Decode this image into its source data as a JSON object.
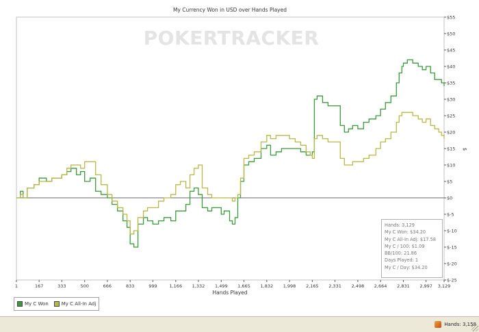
{
  "chart_data": {
    "type": "line",
    "title": "My Currency Won in USD over Hands Played",
    "xlabel": "Hands Played",
    "ylabel": "$",
    "xlim": [
      1,
      3129
    ],
    "ylim": [
      -25,
      55
    ],
    "x_ticks": [
      1,
      167,
      333,
      500,
      666,
      833,
      999,
      1166,
      1332,
      1499,
      1665,
      1832,
      1998,
      2165,
      2331,
      2498,
      2664,
      2831,
      2997,
      3129
    ],
    "x_tick_labels": [
      "1",
      "167",
      "333",
      "500",
      "666",
      "833",
      "999",
      "1,166",
      "1,332",
      "1,499",
      "1,665",
      "1,832",
      "1,998",
      "2,165",
      "2,331",
      "2,498",
      "2,664",
      "2,831",
      "2,997",
      "3,129"
    ],
    "y_ticks": [
      -25,
      -20,
      -15,
      -10,
      -5,
      0,
      5,
      10,
      15,
      20,
      25,
      30,
      35,
      40,
      45,
      50,
      55
    ],
    "y_tick_labels": [
      "$-25",
      "$-20",
      "$-15",
      "$-10",
      "$-5",
      "$0",
      "$5",
      "$10",
      "$15",
      "$20",
      "$25",
      "$30",
      "$35",
      "$40",
      "$45",
      "$50",
      "$55"
    ],
    "grid": false,
    "legend_position": "bottom-left",
    "series": [
      {
        "name": "My C Won",
        "color": "#3a9a3a",
        "x": [
          1,
          30,
          50,
          80,
          130,
          167,
          220,
          260,
          333,
          370,
          400,
          440,
          470,
          500,
          540,
          580,
          620,
          666,
          700,
          740,
          780,
          810,
          833,
          860,
          890,
          930,
          960,
          999,
          1040,
          1080,
          1130,
          1166,
          1200,
          1240,
          1270,
          1300,
          1332,
          1360,
          1400,
          1430,
          1460,
          1499,
          1520,
          1560,
          1580,
          1600,
          1620,
          1640,
          1665,
          1700,
          1740,
          1790,
          1832,
          1860,
          1900,
          1940,
          1998,
          2040,
          2080,
          2120,
          2150,
          2165,
          2180,
          2200,
          2240,
          2280,
          2331,
          2370,
          2400,
          2430,
          2460,
          2498,
          2540,
          2580,
          2630,
          2664,
          2700,
          2740,
          2780,
          2800,
          2820,
          2831,
          2860,
          2900,
          2940,
          2970,
          2997,
          3030,
          3060,
          3090,
          3110,
          3129
        ],
        "y": [
          0,
          2,
          0,
          3,
          4,
          6,
          5,
          6,
          7,
          8,
          9,
          7,
          8,
          5,
          6,
          2,
          1,
          0,
          -2,
          -4,
          -7,
          -9,
          -14,
          -15,
          -8,
          -6,
          -7,
          -8,
          -7,
          -6,
          -7,
          -4,
          -4,
          -2,
          2,
          3,
          1,
          -3,
          -4,
          -3,
          -3,
          -5,
          -4,
          -7,
          -8,
          -6,
          0,
          5,
          10,
          11,
          12,
          15,
          16,
          13,
          14,
          15,
          15,
          15,
          14,
          13,
          13,
          14,
          30,
          31,
          29,
          28,
          28,
          22,
          20,
          21,
          22,
          21,
          23,
          24,
          25,
          27,
          29,
          31,
          35,
          38,
          40,
          41,
          42,
          41,
          40,
          39,
          40,
          38,
          36,
          36,
          35,
          34
        ]
      },
      {
        "name": "My C All-In Adj",
        "color": "#b8b848",
        "x": [
          1,
          30,
          50,
          80,
          130,
          167,
          220,
          260,
          333,
          370,
          400,
          440,
          470,
          500,
          540,
          580,
          620,
          666,
          700,
          740,
          780,
          810,
          833,
          860,
          890,
          930,
          960,
          999,
          1040,
          1080,
          1130,
          1166,
          1200,
          1240,
          1270,
          1300,
          1332,
          1360,
          1400,
          1430,
          1460,
          1499,
          1520,
          1560,
          1580,
          1600,
          1620,
          1640,
          1665,
          1700,
          1740,
          1790,
          1832,
          1860,
          1900,
          1940,
          1998,
          2040,
          2080,
          2120,
          2150,
          2165,
          2180,
          2200,
          2240,
          2280,
          2331,
          2370,
          2400,
          2430,
          2460,
          2498,
          2540,
          2580,
          2630,
          2664,
          2700,
          2740,
          2780,
          2800,
          2820,
          2831,
          2860,
          2900,
          2940,
          2970,
          2997,
          3030,
          3060,
          3090,
          3110,
          3129
        ],
        "y": [
          0,
          1,
          0,
          3,
          4,
          5,
          5,
          6,
          7,
          9,
          10,
          10,
          9,
          11,
          11,
          7,
          4,
          1,
          -1,
          -3,
          -5,
          -7,
          -11,
          -10,
          -6,
          -4,
          -3,
          -3,
          -1,
          0,
          1,
          4,
          5,
          3,
          7,
          9,
          10,
          3,
          1,
          0,
          0,
          0,
          0,
          0,
          -1,
          0,
          1,
          6,
          12,
          13,
          14,
          17,
          19,
          18,
          19,
          19,
          18,
          17,
          16,
          14,
          13,
          12,
          18,
          19,
          18,
          17,
          17,
          12,
          10,
          10,
          11,
          11,
          12,
          13,
          15,
          17,
          18,
          20,
          23,
          25,
          26,
          26,
          26,
          25,
          24,
          23,
          24,
          22,
          21,
          20,
          19,
          18
        ]
      }
    ],
    "watermark": "POKERTRACKER"
  },
  "stats": [
    "Hands: 3,129",
    "My C Won: $34.20",
    "My C All-In Adj: $17.58",
    "My C / 100: $1.09",
    "BB/100: 21.86",
    "Days Played: 1",
    "My C / Day: $34.20"
  ],
  "statusbar": {
    "hands_label": "Hands: 3,158"
  }
}
